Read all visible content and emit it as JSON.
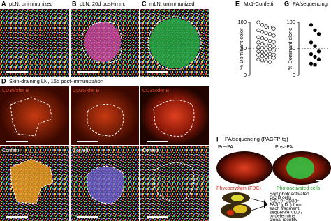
{
  "figure": {
    "a": {
      "letter": "A",
      "title": "pLN, unimmunized"
    },
    "b": {
      "letter": "B",
      "title": "pLN, 20d post-imm."
    },
    "c": {
      "letter": "C",
      "title": "mLN, unimmunized"
    },
    "d": {
      "letter": "D",
      "title": "Skin-draining LN, 15d post-immunization",
      "stain_labels": [
        "CD35/xfer B",
        "CD35/xfer B",
        "CD35/xfer B"
      ],
      "confetti_labels": [
        "Confetti",
        "Confetti",
        "Confetti"
      ]
    },
    "f": {
      "letter": "F",
      "title": "PA/sequencing (PAGFP-tg)",
      "pre_label": "Pre-PA",
      "post_label": "Post-PA",
      "legend_red": "Phycoerythrin (FDC)",
      "legend_green": "Photoactivated cells",
      "note_lines": [
        "Sort photoactivated",
        "GC B cells",
        "(CD19⁺CD38⁻",
        "FAS⁺IgD⁻) from",
        "each fragment,",
        "sequence VDJ",
        "to determine",
        "clonal identity"
      ],
      "note_subscript": "H"
    }
  },
  "chart_data": [
    {
      "type": "dot",
      "letter": "E",
      "title": "Mx1-Confetti",
      "y_label": "% Dominant color",
      "ylim": [
        0,
        100
      ],
      "yticks": [
        0,
        50,
        100
      ],
      "reference_line": 50,
      "marker": "open",
      "color": "#000000",
      "values": [
        100,
        95,
        92,
        90,
        88,
        85,
        82,
        80,
        78,
        75,
        72,
        70,
        68,
        65,
        63,
        62,
        60,
        58,
        56,
        55,
        53,
        52,
        50,
        49,
        47,
        45,
        44,
        42,
        40,
        39,
        38,
        36,
        35,
        34,
        33,
        30,
        28,
        26,
        25
      ]
    },
    {
      "type": "dot",
      "letter": "G",
      "title": "PA/sequencing",
      "y_label": "% Dominant clone",
      "ylim": [
        0,
        100
      ],
      "yticks": [
        0,
        50,
        100
      ],
      "reference_line": 50,
      "marker": "filled",
      "color": "#000000",
      "values": [
        95,
        85,
        78,
        62,
        55,
        45,
        40,
        35,
        30,
        22,
        20
      ]
    }
  ]
}
